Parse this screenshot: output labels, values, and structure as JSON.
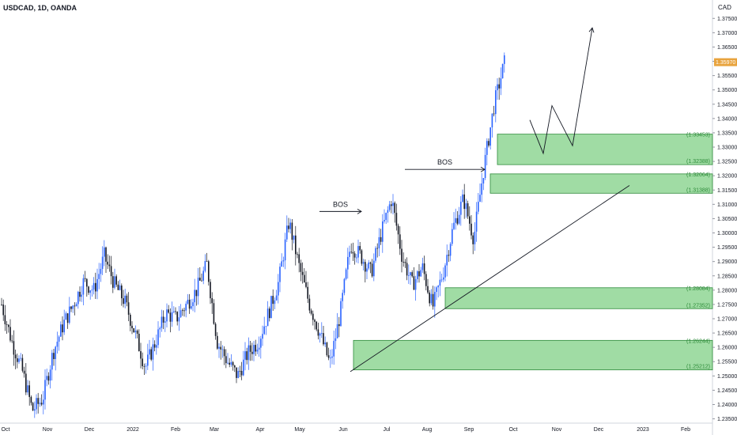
{
  "header": {
    "title": "USDCAD, 1D, OANDA",
    "currency": "CAD"
  },
  "colors": {
    "up": "#2962ff",
    "down": "#131722",
    "zone_fill": "#8fd694",
    "zone_stroke": "#2e8b3a",
    "price_tag": "#e8a33d"
  },
  "chart_data": {
    "type": "candlestick",
    "symbol": "USDCAD",
    "interval": "1D",
    "source": "OANDA",
    "y_ticks": [
      "1.37500",
      "1.37000",
      "1.36500",
      "1.36000",
      "1.35500",
      "1.35000",
      "1.34500",
      "1.34000",
      "1.33500",
      "1.33000",
      "1.32500",
      "1.32000",
      "1.31500",
      "1.31000",
      "1.30500",
      "1.30000",
      "1.29500",
      "1.29000",
      "1.28500",
      "1.28000",
      "1.27500",
      "1.27000",
      "1.26500",
      "1.26000",
      "1.25500",
      "1.25000",
      "1.24500",
      "1.24000",
      "1.23500"
    ],
    "y_tick_values": [
      1.375,
      1.37,
      1.365,
      1.36,
      1.355,
      1.35,
      1.345,
      1.34,
      1.335,
      1.33,
      1.325,
      1.32,
      1.315,
      1.31,
      1.305,
      1.3,
      1.295,
      1.29,
      1.285,
      1.28,
      1.275,
      1.27,
      1.265,
      1.26,
      1.255,
      1.25,
      1.245,
      1.24,
      1.235
    ],
    "ylim": [
      1.2335,
      1.3795
    ],
    "x_ticks": [
      "Oct",
      "Nov",
      "Dec",
      "2022",
      "Feb",
      "Mar",
      "Apr",
      "May",
      "Jun",
      "Jul",
      "Aug",
      "Sep",
      "Oct",
      "Nov",
      "Dec",
      "2023",
      "Feb"
    ],
    "current_price": 1.3597,
    "current_price_label": "1.35970",
    "close_path": [
      [
        "Oct",
        1.275
      ],
      [
        "Oct",
        1.262
      ],
      [
        "Oct",
        1.252
      ],
      [
        "Nov",
        1.238
      ],
      [
        "Nov",
        1.242
      ],
      [
        "Nov",
        1.258
      ],
      [
        "Nov",
        1.268
      ],
      [
        "Dec",
        1.275
      ],
      [
        "Dec",
        1.283
      ],
      [
        "Dec",
        1.28
      ],
      [
        "Dec",
        1.292
      ],
      [
        "Dec",
        1.282
      ],
      [
        "2022",
        1.276
      ],
      [
        "2022",
        1.265
      ],
      [
        "2022",
        1.253
      ],
      [
        "2022",
        1.262
      ],
      [
        "Feb",
        1.272
      ],
      [
        "Feb",
        1.27
      ],
      [
        "Feb",
        1.275
      ],
      [
        "Mar",
        1.28
      ],
      [
        "Mar",
        1.289
      ],
      [
        "Mar",
        1.262
      ],
      [
        "Mar",
        1.255
      ],
      [
        "Apr",
        1.25
      ],
      [
        "Apr",
        1.258
      ],
      [
        "Apr",
        1.262
      ],
      [
        "Apr",
        1.272
      ],
      [
        "May",
        1.283
      ],
      [
        "May",
        1.304
      ],
      [
        "May",
        1.288
      ],
      [
        "May",
        1.275
      ],
      [
        "Jun",
        1.265
      ],
      [
        "Jun",
        1.254
      ],
      [
        "Jun",
        1.272
      ],
      [
        "Jun",
        1.296
      ],
      [
        "Jul",
        1.292
      ],
      [
        "Jul",
        1.286
      ],
      [
        "Jul",
        1.3
      ],
      [
        "Jul",
        1.312
      ],
      [
        "Aug",
        1.292
      ],
      [
        "Aug",
        1.282
      ],
      [
        "Aug",
        1.288
      ],
      [
        "Aug",
        1.274
      ],
      [
        "Aug",
        1.286
      ],
      [
        "Sep",
        1.302
      ],
      [
        "Sep",
        1.312
      ],
      [
        "Sep",
        1.298
      ],
      [
        "Sep",
        1.323
      ],
      [
        "Sep",
        1.345
      ],
      [
        "Sep",
        1.3597
      ]
    ],
    "zones": [
      {
        "top": 1.33453,
        "bottom": 1.32388,
        "top_label": "(1.33453)",
        "bottom_label": "(1.32388)"
      },
      {
        "top": 1.32064,
        "bottom": 1.31388,
        "top_label": "(1.32064)",
        "bottom_label": "(1.31388)"
      },
      {
        "top": 1.28084,
        "bottom": 1.27352,
        "top_label": "(1.28084)",
        "bottom_label": "(1.27352)"
      },
      {
        "top": 1.26244,
        "bottom": 1.25212,
        "top_label": "(1.26244)",
        "bottom_label": "(1.25212)"
      }
    ],
    "annotations": [
      {
        "label": "BOS",
        "price": 1.3075,
        "from": "May",
        "to": "Jun"
      },
      {
        "label": "BOS",
        "price": 1.3222,
        "from": "Jul",
        "to": "Sep"
      }
    ],
    "trendline": {
      "from_price": 1.2515,
      "to_price": 1.3166
    },
    "projection": [
      1.3395,
      1.3278,
      1.3445,
      1.3305,
      1.3717
    ]
  }
}
